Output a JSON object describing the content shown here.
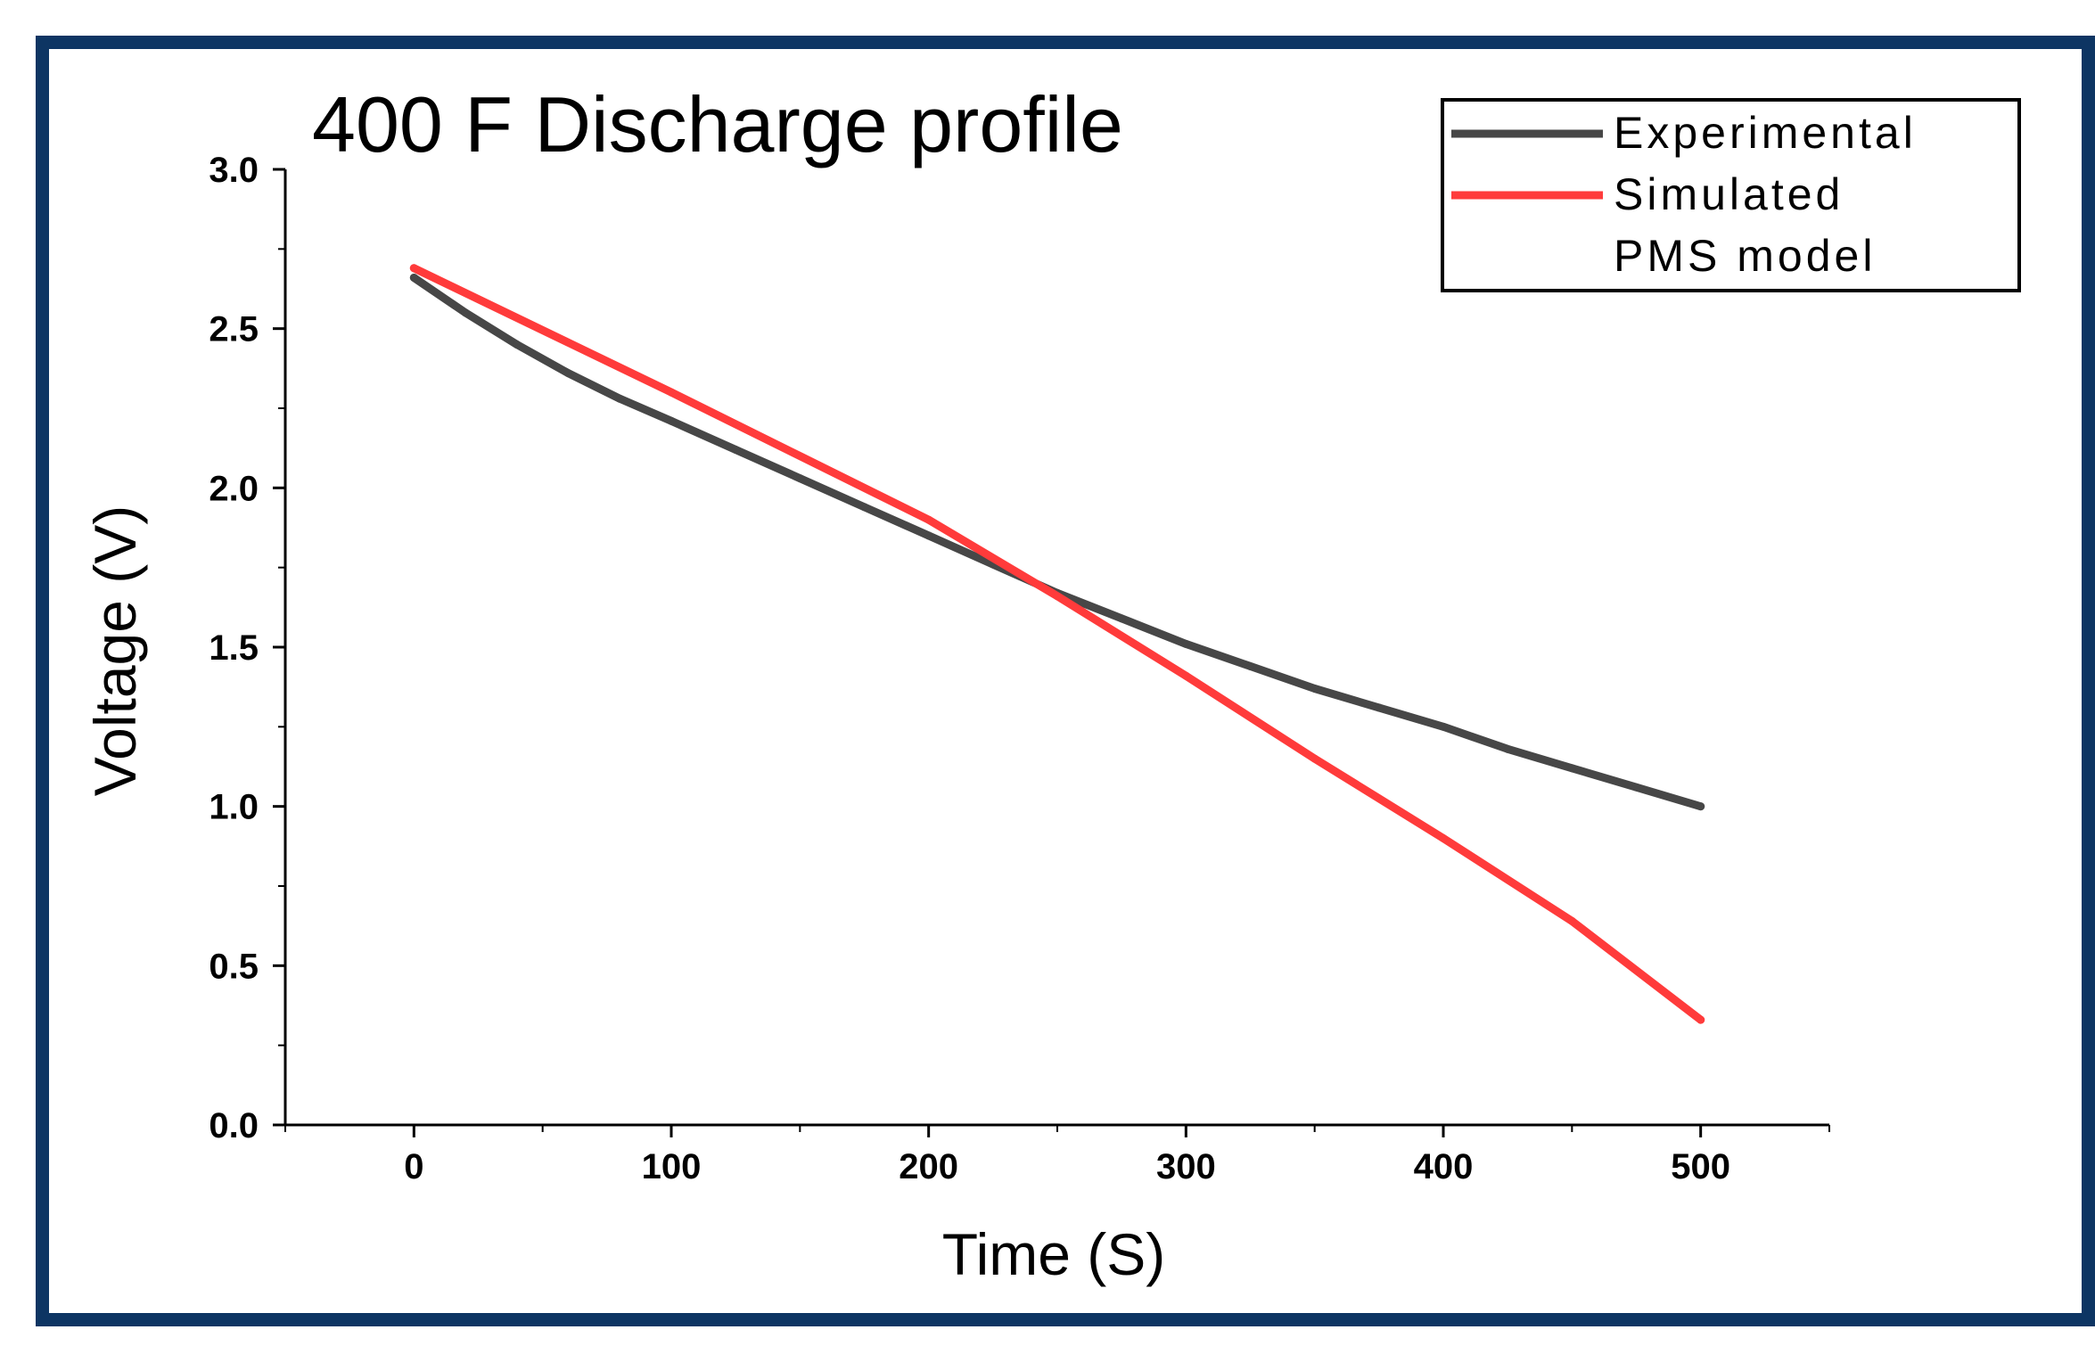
{
  "colors": {
    "frame": "#0d3563",
    "experimental": "#474747",
    "simulated": "#ff3b3b",
    "axis": "#000000"
  },
  "chart_data": {
    "type": "line",
    "title": "400 F Discharge profile",
    "xlabel": "Time (S)",
    "ylabel": "Voltage (V)",
    "xlim": [
      -50,
      550
    ],
    "ylim": [
      0,
      3.0
    ],
    "xticks": [
      0,
      100,
      200,
      300,
      400,
      500
    ],
    "xtick_labels": [
      "0",
      "100",
      "200",
      "300",
      "400",
      "500"
    ],
    "yticks": [
      0.0,
      0.5,
      1.0,
      1.5,
      2.0,
      2.5,
      3.0
    ],
    "ytick_labels": [
      "0.0",
      "0.5",
      "1.0",
      "1.5",
      "2.0",
      "2.5",
      "3.0"
    ],
    "legend": {
      "position": "top-right",
      "entries": [
        "Experimental",
        "Simulated",
        "PMS model"
      ]
    },
    "series": [
      {
        "name": "Experimental",
        "color": "#474747",
        "x": [
          0,
          20,
          40,
          60,
          80,
          100,
          125,
          150,
          175,
          200,
          225,
          250,
          275,
          300,
          325,
          350,
          375,
          400,
          425,
          450,
          475,
          500
        ],
        "y": [
          2.66,
          2.55,
          2.45,
          2.36,
          2.28,
          2.21,
          2.12,
          2.03,
          1.94,
          1.85,
          1.76,
          1.67,
          1.59,
          1.51,
          1.44,
          1.37,
          1.31,
          1.25,
          1.18,
          1.12,
          1.06,
          1.0
        ]
      },
      {
        "name": "Simulated PMS model",
        "color": "#ff3b3b",
        "x": [
          0,
          100,
          200,
          250,
          300,
          350,
          400,
          450,
          500
        ],
        "y": [
          2.69,
          2.3,
          1.9,
          1.66,
          1.41,
          1.15,
          0.9,
          0.64,
          0.33
        ]
      }
    ]
  }
}
